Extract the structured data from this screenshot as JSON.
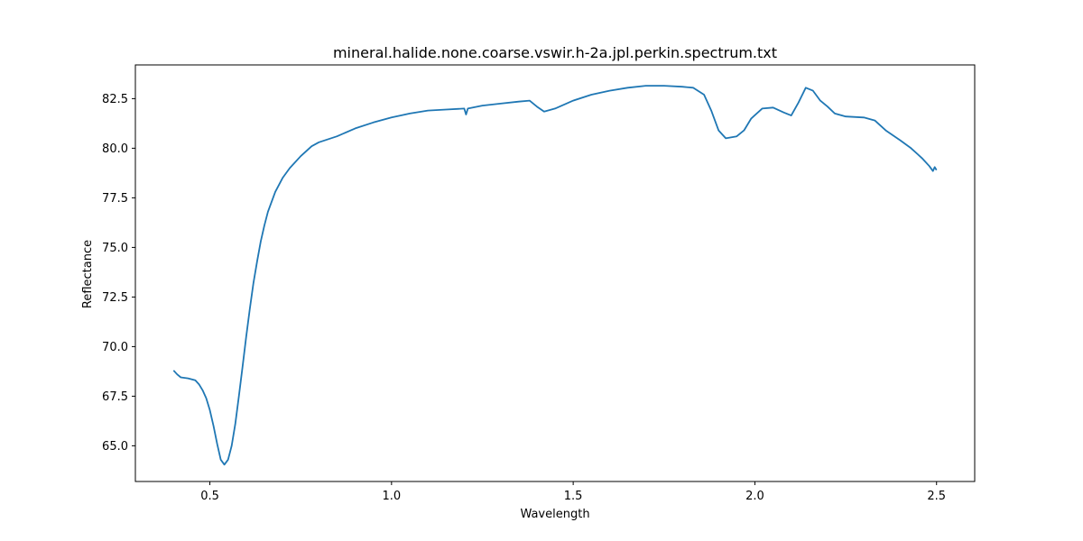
{
  "chart_data": {
    "type": "line",
    "title": "mineral.halide.none.coarse.vswir.h-2a.jpl.perkin.spectrum.txt",
    "xlabel": "Wavelength",
    "ylabel": "Reflectance",
    "xlim": [
      0.295,
      2.605
    ],
    "ylim": [
      63.2,
      84.2
    ],
    "xticks": [
      0.5,
      1.0,
      1.5,
      2.0,
      2.5
    ],
    "xtick_labels": [
      "0.5",
      "1.0",
      "1.5",
      "2.0",
      "2.5"
    ],
    "yticks": [
      65.0,
      67.5,
      70.0,
      72.5,
      75.0,
      77.5,
      80.0,
      82.5
    ],
    "ytick_labels": [
      "65.0",
      "67.5",
      "70.0",
      "72.5",
      "75.0",
      "77.5",
      "80.0",
      "82.5"
    ],
    "grid": false,
    "series": [
      {
        "color": "#1f77b4",
        "points": [
          [
            0.4,
            68.8
          ],
          [
            0.41,
            68.6
          ],
          [
            0.42,
            68.45
          ],
          [
            0.44,
            68.4
          ],
          [
            0.46,
            68.3
          ],
          [
            0.47,
            68.1
          ],
          [
            0.48,
            67.8
          ],
          [
            0.49,
            67.4
          ],
          [
            0.5,
            66.8
          ],
          [
            0.51,
            66.0
          ],
          [
            0.52,
            65.1
          ],
          [
            0.53,
            64.3
          ],
          [
            0.54,
            64.05
          ],
          [
            0.55,
            64.3
          ],
          [
            0.56,
            65.0
          ],
          [
            0.57,
            66.1
          ],
          [
            0.58,
            67.5
          ],
          [
            0.59,
            69.0
          ],
          [
            0.6,
            70.5
          ],
          [
            0.61,
            71.9
          ],
          [
            0.62,
            73.2
          ],
          [
            0.63,
            74.3
          ],
          [
            0.64,
            75.3
          ],
          [
            0.65,
            76.1
          ],
          [
            0.66,
            76.8
          ],
          [
            0.68,
            77.8
          ],
          [
            0.7,
            78.5
          ],
          [
            0.72,
            79.0
          ],
          [
            0.75,
            79.6
          ],
          [
            0.78,
            80.1
          ],
          [
            0.8,
            80.3
          ],
          [
            0.85,
            80.6
          ],
          [
            0.9,
            81.0
          ],
          [
            0.95,
            81.3
          ],
          [
            1.0,
            81.55
          ],
          [
            1.05,
            81.75
          ],
          [
            1.1,
            81.9
          ],
          [
            1.15,
            81.95
          ],
          [
            1.2,
            82.0
          ],
          [
            1.205,
            81.7
          ],
          [
            1.21,
            82.0
          ],
          [
            1.25,
            82.15
          ],
          [
            1.3,
            82.25
          ],
          [
            1.35,
            82.35
          ],
          [
            1.38,
            82.4
          ],
          [
            1.4,
            82.1
          ],
          [
            1.42,
            81.85
          ],
          [
            1.45,
            82.0
          ],
          [
            1.5,
            82.4
          ],
          [
            1.55,
            82.7
          ],
          [
            1.6,
            82.9
          ],
          [
            1.65,
            83.05
          ],
          [
            1.7,
            83.15
          ],
          [
            1.75,
            83.15
          ],
          [
            1.8,
            83.1
          ],
          [
            1.83,
            83.05
          ],
          [
            1.86,
            82.7
          ],
          [
            1.88,
            81.9
          ],
          [
            1.9,
            80.9
          ],
          [
            1.92,
            80.5
          ],
          [
            1.95,
            80.6
          ],
          [
            1.97,
            80.9
          ],
          [
            1.99,
            81.5
          ],
          [
            2.02,
            82.0
          ],
          [
            2.05,
            82.05
          ],
          [
            2.08,
            81.8
          ],
          [
            2.1,
            81.65
          ],
          [
            2.12,
            82.3
          ],
          [
            2.14,
            83.05
          ],
          [
            2.16,
            82.9
          ],
          [
            2.18,
            82.4
          ],
          [
            2.2,
            82.1
          ],
          [
            2.22,
            81.75
          ],
          [
            2.25,
            81.6
          ],
          [
            2.3,
            81.55
          ],
          [
            2.33,
            81.4
          ],
          [
            2.36,
            80.9
          ],
          [
            2.4,
            80.4
          ],
          [
            2.43,
            80.0
          ],
          [
            2.46,
            79.5
          ],
          [
            2.48,
            79.1
          ],
          [
            2.49,
            78.85
          ],
          [
            2.495,
            79.05
          ],
          [
            2.5,
            78.9
          ]
        ]
      }
    ]
  }
}
